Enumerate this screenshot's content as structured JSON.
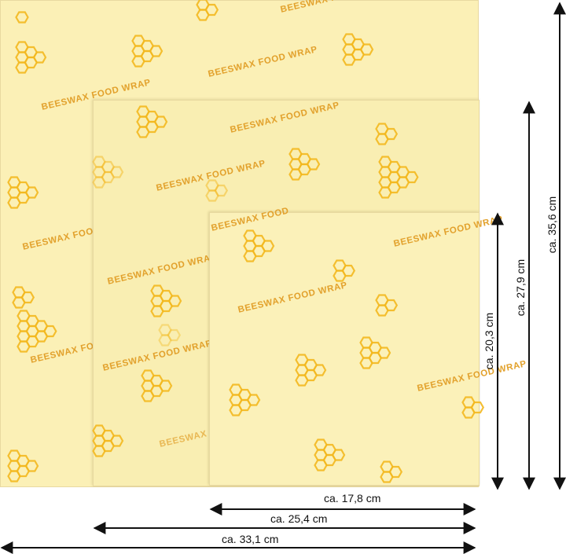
{
  "product": {
    "print_text": "BEESWAX FOOD WRAP",
    "print_text_partial": "BEESWAX FOOD",
    "print_text_cut": "BEESWAX FOOD WRA",
    "print_text_bottom": "BEESWAX FOOD",
    "wrap_color": "#fbf0b6",
    "print_color": "#e2a12c",
    "comb_color": "#f3b81f"
  },
  "dimensions": {
    "small_width": "ca. 17,8 cm",
    "medium_width": "ca. 25,4 cm",
    "large_width": "ca. 33,1 cm",
    "small_height": "ca. 20,3 cm",
    "medium_height": "ca. 27,9 cm",
    "large_height": "ca. 35,6 cm"
  }
}
